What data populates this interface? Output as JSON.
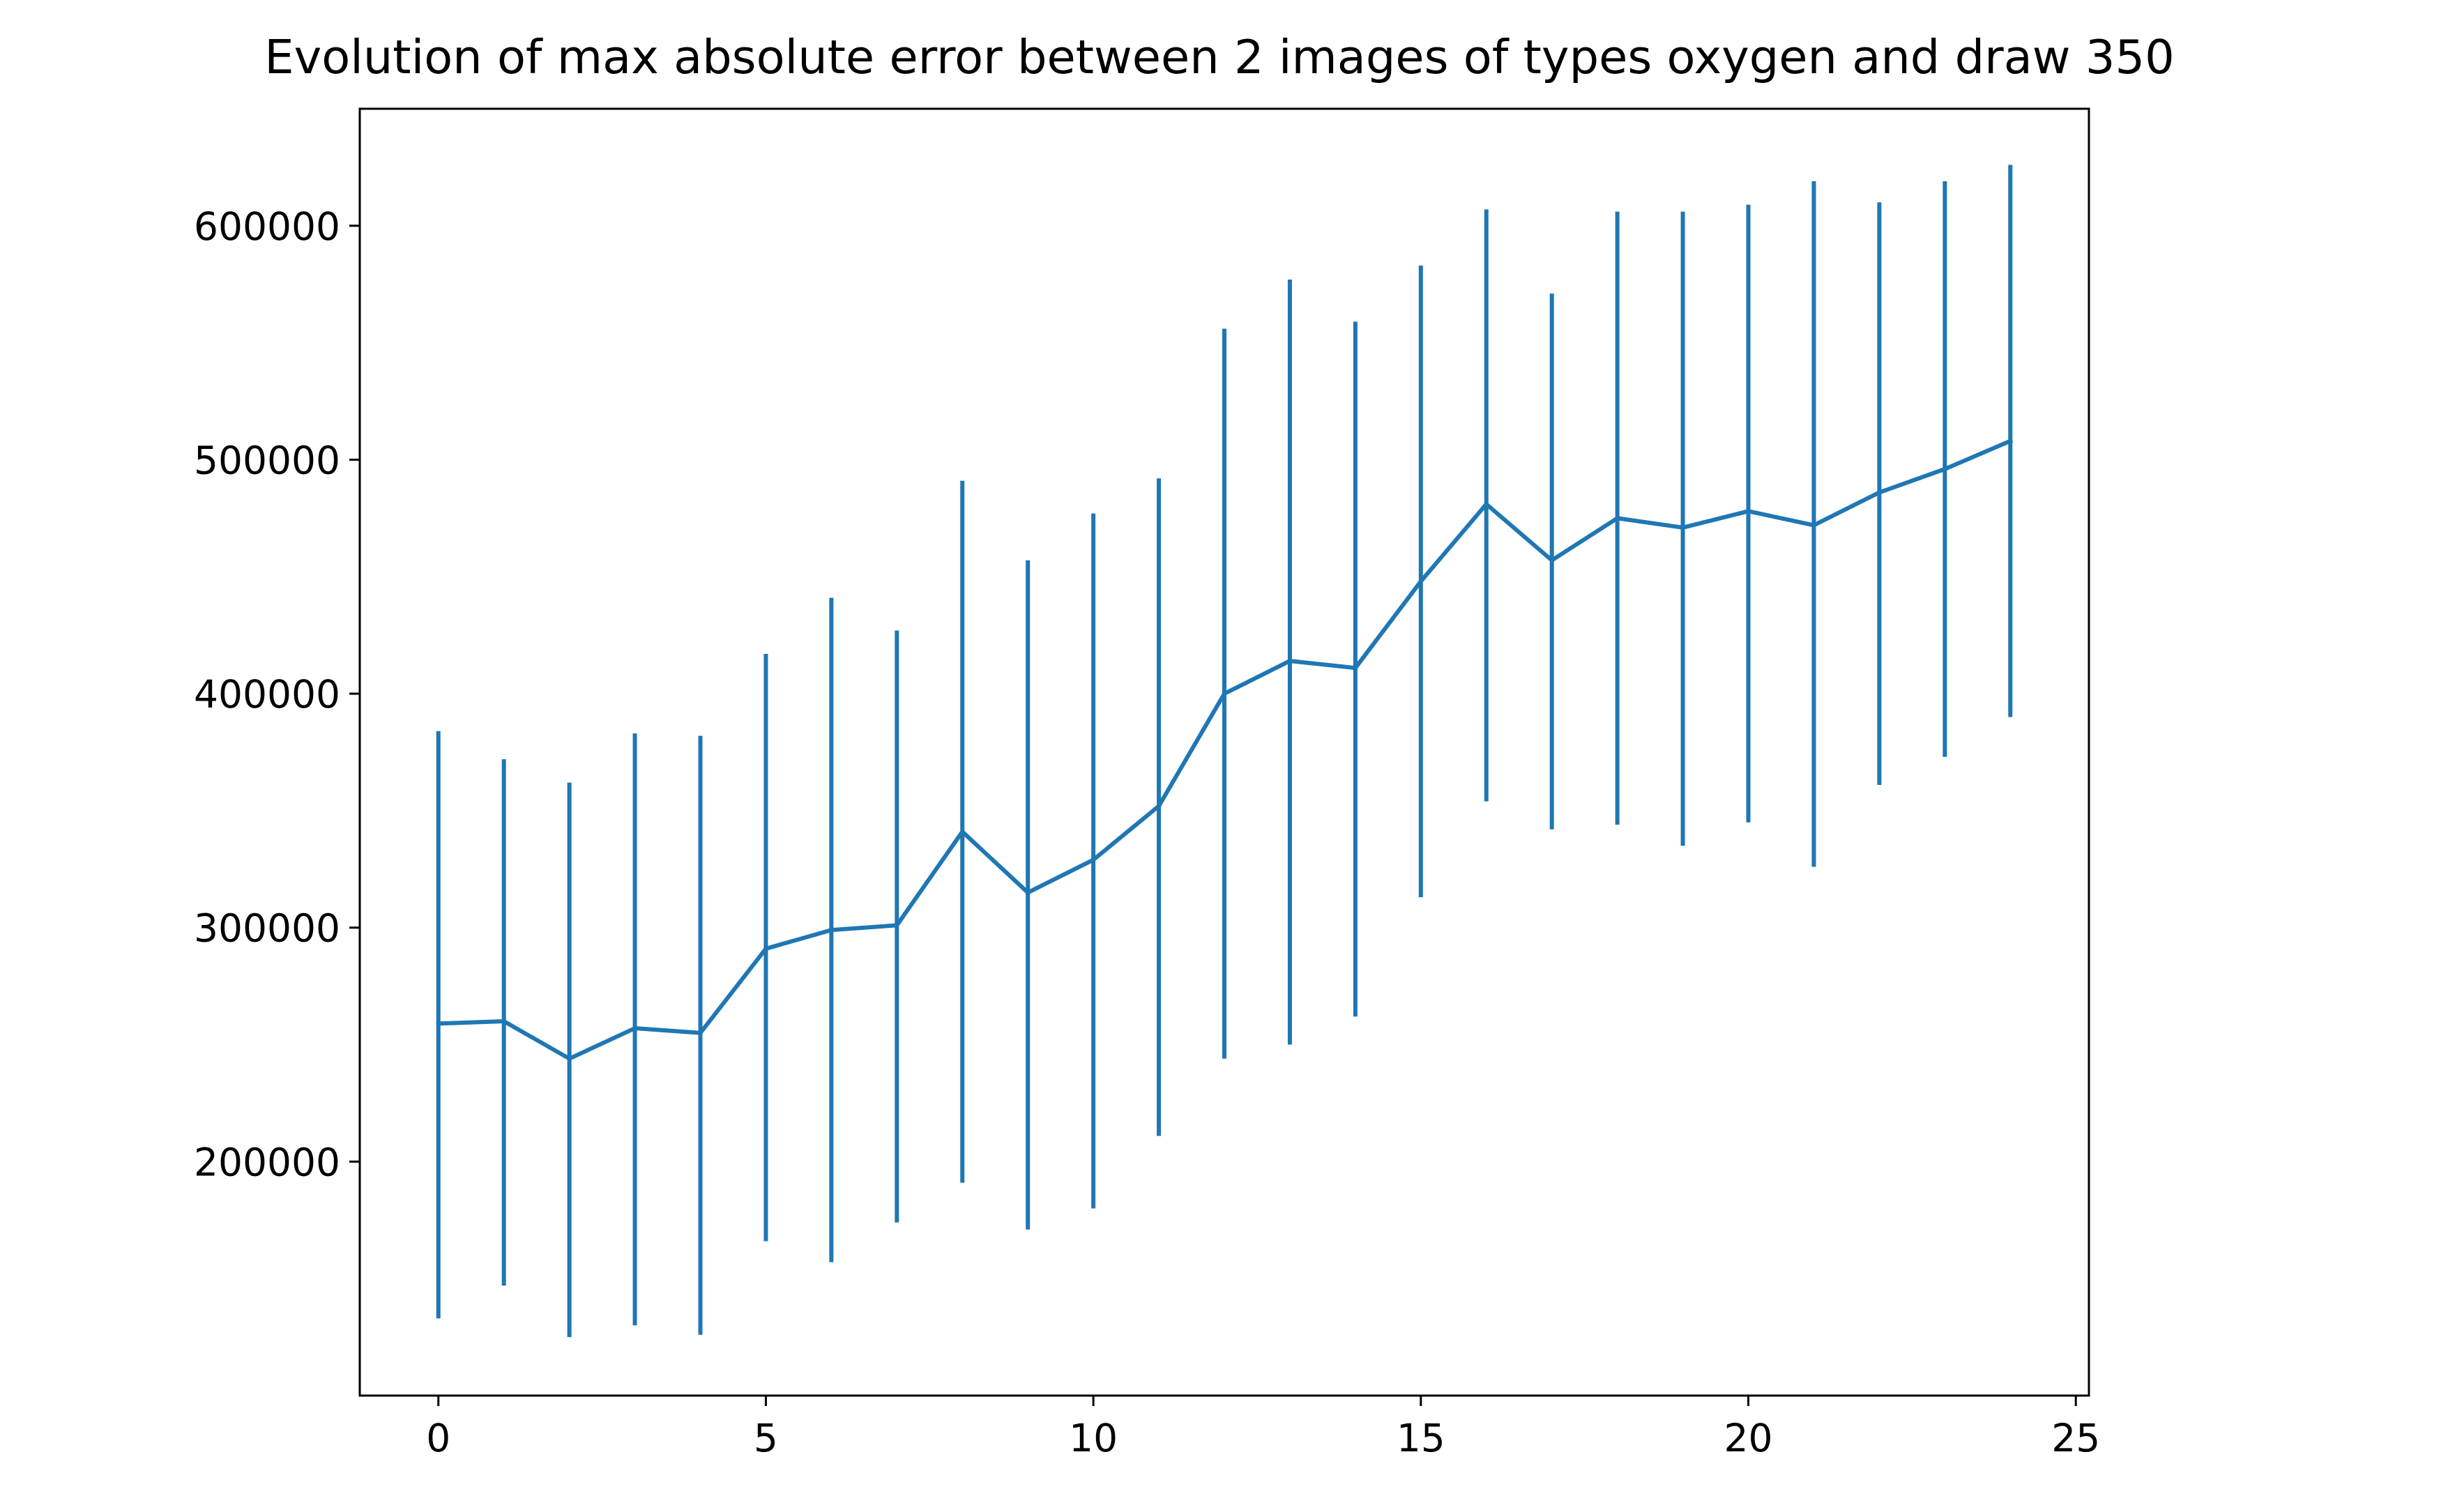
{
  "chart_data": {
    "type": "line",
    "title": "Evolution of max absolute error between 2 images of types oxygen and draw 350",
    "xlabel": "",
    "ylabel": "",
    "xlim": [
      -1.2,
      25.2
    ],
    "ylim": [
      100000,
      650000
    ],
    "x_ticks": [
      0,
      5,
      10,
      15,
      20,
      25
    ],
    "x_tick_labels": [
      "0",
      "5",
      "10",
      "15",
      "20",
      "25"
    ],
    "y_ticks": [
      200000,
      300000,
      400000,
      500000,
      600000
    ],
    "y_tick_labels": [
      "200000",
      "300000",
      "400000",
      "500000",
      "600000"
    ],
    "grid": false,
    "legend": "none",
    "color": "#1f77b4",
    "series": [
      {
        "x": [
          0,
          1,
          2,
          3,
          4,
          5,
          6,
          7,
          8,
          9,
          10,
          11,
          12,
          13,
          14,
          15,
          16,
          17,
          18,
          19,
          20,
          21,
          22,
          23,
          24
        ],
        "values": [
          259000,
          260000,
          244000,
          257000,
          255000,
          291000,
          299000,
          301000,
          341000,
          315000,
          329000,
          352000,
          400000,
          414000,
          411000,
          448000,
          481000,
          457000,
          475000,
          471000,
          478000,
          472000,
          486000,
          496000,
          508000
        ],
        "error_low": [
          133000,
          147000,
          125000,
          130000,
          126000,
          166000,
          157000,
          174000,
          191000,
          171000,
          180000,
          211000,
          244000,
          250000,
          262000,
          313000,
          354000,
          342000,
          344000,
          335000,
          345000,
          326000,
          361000,
          373000,
          390000
        ],
        "error_high": [
          384000,
          372000,
          362000,
          383000,
          382000,
          417000,
          441000,
          427000,
          491000,
          457000,
          477000,
          492000,
          556000,
          577000,
          559000,
          583000,
          607000,
          571000,
          606000,
          606000,
          609000,
          619000,
          610000,
          619000,
          626000
        ]
      }
    ]
  }
}
